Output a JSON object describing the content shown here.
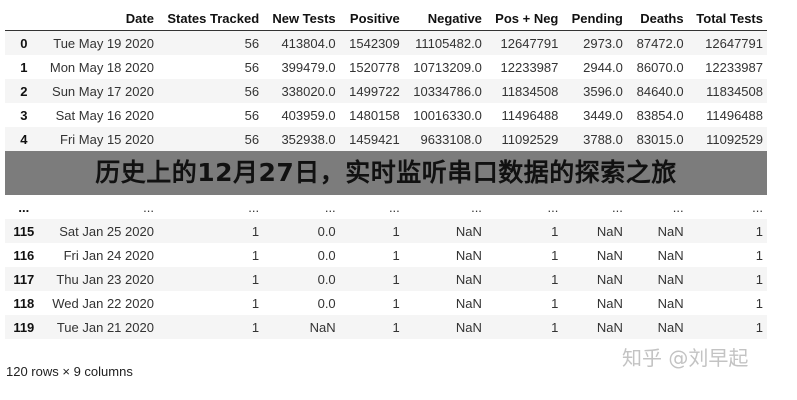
{
  "table": {
    "columns": [
      "",
      "Date",
      "States Tracked",
      "New Tests",
      "Positive",
      "Negative",
      "Pos + Neg",
      "Pending",
      "Deaths",
      "Total Tests"
    ],
    "rows": [
      [
        "0",
        "Tue May 19 2020",
        "56",
        "413804.0",
        "1542309",
        "11105482.0",
        "12647791",
        "2973.0",
        "87472.0",
        "12647791"
      ],
      [
        "1",
        "Mon May 18 2020",
        "56",
        "399479.0",
        "1520778",
        "10713209.0",
        "12233987",
        "2944.0",
        "86070.0",
        "12233987"
      ],
      [
        "2",
        "Sun May 17 2020",
        "56",
        "338020.0",
        "1499722",
        "10334786.0",
        "11834508",
        "3596.0",
        "84640.0",
        "11834508"
      ],
      [
        "3",
        "Sat May 16 2020",
        "56",
        "403959.0",
        "1480158",
        "10016330.0",
        "11496488",
        "3449.0",
        "83854.0",
        "11496488"
      ],
      [
        "4",
        "Fri May 15 2020",
        "56",
        "352938.0",
        "1459421",
        "9633108.0",
        "11092529",
        "3788.0",
        "83015.0",
        "11092529"
      ],
      [
        "...",
        "...",
        "...",
        "...",
        "...",
        "...",
        "...",
        "...",
        "...",
        "..."
      ],
      [
        "115",
        "Sat Jan 25 2020",
        "1",
        "0.0",
        "1",
        "NaN",
        "1",
        "NaN",
        "NaN",
        "1"
      ],
      [
        "116",
        "Fri Jan 24 2020",
        "1",
        "0.0",
        "1",
        "NaN",
        "1",
        "NaN",
        "NaN",
        "1"
      ],
      [
        "117",
        "Thu Jan 23 2020",
        "1",
        "0.0",
        "1",
        "NaN",
        "1",
        "NaN",
        "NaN",
        "1"
      ],
      [
        "118",
        "Wed Jan 22 2020",
        "1",
        "0.0",
        "1",
        "NaN",
        "1",
        "NaN",
        "NaN",
        "1"
      ],
      [
        "119",
        "Tue Jan 21 2020",
        "1",
        "NaN",
        "1",
        "NaN",
        "1",
        "NaN",
        "NaN",
        "1"
      ]
    ]
  },
  "footer": "120 rows × 9 columns",
  "banner_title": "历史上的12月27日，实时监听串口数据的探索之旅",
  "watermark": "知乎 @刘早起"
}
